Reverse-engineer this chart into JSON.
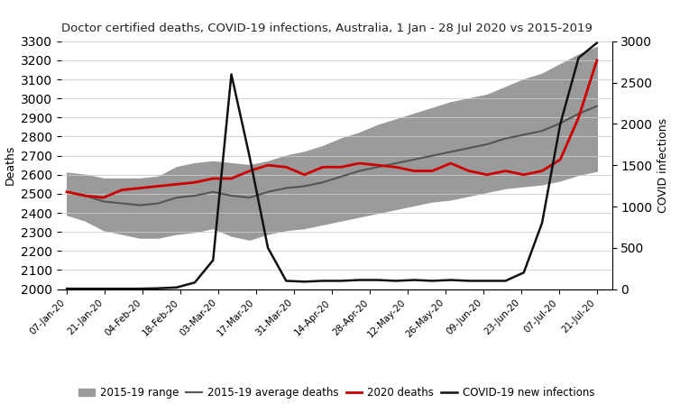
{
  "title": "Doctor certified deaths, COVID-19 infections, Australia, 1 Jan - 28 Jul 2020 vs 2015-2019",
  "ylabel_left": "Deaths",
  "ylabel_right": "COVID infections",
  "ylim_left": [
    2000,
    3300
  ],
  "ylim_right": [
    0,
    3000
  ],
  "x_labels": [
    "07-Jan-20",
    "21-Jan-20",
    "04-Feb-20",
    "18-Feb-20",
    "03-Mar-20",
    "17-Mar-20",
    "31-Mar-20",
    "14-Apr-20",
    "28-Apr-20",
    "12-May-20",
    "26-May-20",
    "09-Jun-20",
    "23-Jun-20",
    "07-Jul-20",
    "21-Jul-20"
  ],
  "avg_deaths": [
    2510,
    2490,
    2460,
    2450,
    2440,
    2450,
    2480,
    2490,
    2510,
    2490,
    2480,
    2510,
    2530,
    2540,
    2560,
    2590,
    2620,
    2640,
    2660,
    2680,
    2700,
    2720,
    2740,
    2760,
    2790,
    2810,
    2830,
    2870,
    2920,
    2960
  ],
  "range_upper": [
    2610,
    2600,
    2580,
    2580,
    2580,
    2590,
    2640,
    2660,
    2670,
    2660,
    2650,
    2670,
    2700,
    2720,
    2750,
    2790,
    2820,
    2860,
    2890,
    2920,
    2950,
    2980,
    3000,
    3020,
    3060,
    3100,
    3130,
    3180,
    3230,
    3270
  ],
  "range_lower": [
    2390,
    2360,
    2310,
    2290,
    2270,
    2270,
    2290,
    2300,
    2320,
    2280,
    2260,
    2290,
    2310,
    2320,
    2340,
    2360,
    2380,
    2400,
    2420,
    2440,
    2460,
    2470,
    2490,
    2510,
    2530,
    2540,
    2550,
    2570,
    2600,
    2620
  ],
  "deaths_2020": [
    2510,
    2490,
    2480,
    2520,
    2530,
    2540,
    2550,
    2560,
    2580,
    2580,
    2620,
    2650,
    2640,
    2600,
    2640,
    2640,
    2660,
    2650,
    2640,
    2620,
    2620,
    2660,
    2620,
    2600,
    2620,
    2600,
    2620,
    2680,
    2900,
    3200
  ],
  "covid_infections": [
    5,
    5,
    5,
    5,
    5,
    10,
    20,
    80,
    350,
    2600,
    1600,
    500,
    100,
    90,
    100,
    100,
    110,
    110,
    100,
    110,
    100,
    110,
    100,
    100,
    100,
    200,
    800,
    2000,
    2800,
    2980
  ],
  "range_color": "#9a9a9a",
  "avg_color": "#555555",
  "deaths_color": "#cc0000",
  "covid_color": "#111111",
  "background_color": "#ffffff",
  "n_data": 30,
  "n_ticks": 15
}
